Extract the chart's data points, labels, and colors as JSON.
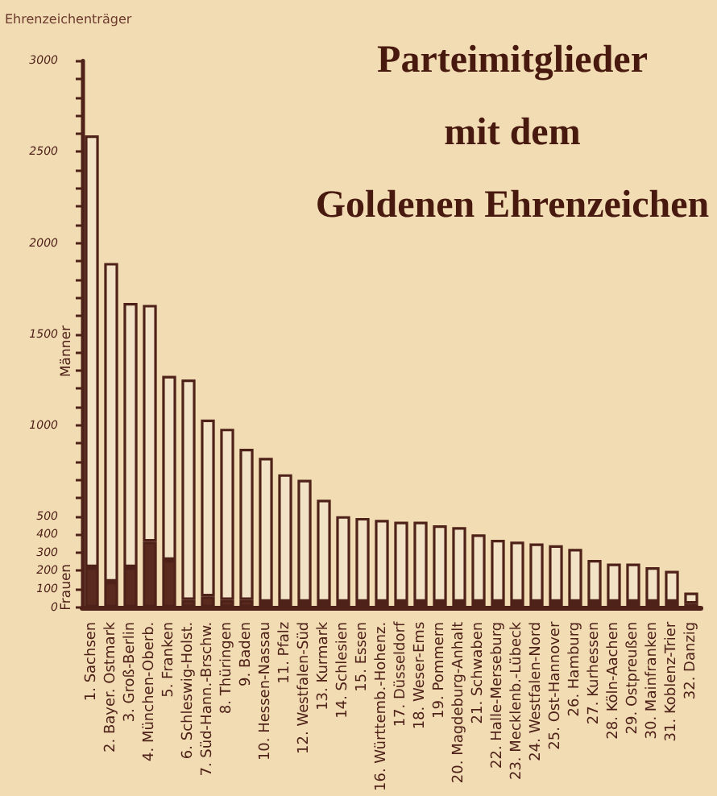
{
  "chart_data": {
    "type": "bar",
    "title": "Parteimitglieder\nmit dem\nGoldenen Ehrenzeichen",
    "ylabel": "Ehrenzeichenträger",
    "categories": [
      "1. Sachsen",
      "2. Bayer. Ostmark",
      "3. Groß-Berlin",
      "4. München-Oberb.",
      "5. Franken",
      "6. Schleswig-Holst.",
      "7. Süd-Hann.-Brschw.",
      "8. Thüringen",
      "9. Baden",
      "10. Hessen-Nassau",
      "11. Pfalz",
      "12. Westfalen-Süd",
      "13. Kurmark",
      "14. Schlesien",
      "15. Essen",
      "16. Württemb.-Hohenz.",
      "17. Düsseldorf",
      "18. Weser-Ems",
      "19. Pommern",
      "20. Magdeburg-Anhalt",
      "21. Schwaben",
      "22. Halle-Merseburg",
      "23. Mecklenb.-Lübeck",
      "24. Westfalen-Nord",
      "25. Ost-Hannover",
      "26. Hamburg",
      "27. Kurhessen",
      "28. Köln-Aachen",
      "29. Ostpreußen",
      "30. Mainfranken",
      "31. Koblenz-Trier",
      "32. Danzig"
    ],
    "stacked": true,
    "series": [
      {
        "name": "Frauen",
        "color": "#5b2a1f",
        "values": [
          220,
          140,
          220,
          360,
          260,
          40,
          60,
          40,
          40,
          30,
          30,
          30,
          30,
          30,
          30,
          30,
          30,
          30,
          30,
          30,
          30,
          30,
          30,
          30,
          30,
          30,
          30,
          30,
          30,
          30,
          30,
          20
        ]
      },
      {
        "name": "Männer",
        "color": "#f3e3c6",
        "values": [
          2370,
          1750,
          1450,
          1300,
          1010,
          1210,
          970,
          940,
          830,
          790,
          700,
          670,
          560,
          470,
          460,
          450,
          440,
          440,
          420,
          410,
          370,
          340,
          330,
          320,
          310,
          290,
          230,
          210,
          210,
          190,
          170,
          60
        ]
      }
    ],
    "ylim": [
      0,
      3000
    ],
    "yticks": [
      0,
      100,
      200,
      300,
      400,
      500,
      {
        "value": 600,
        "label": null
      },
      {
        "value": 700,
        "label": null
      },
      {
        "value": 800,
        "label": null
      },
      {
        "value": 900,
        "label": null
      },
      1000,
      {
        "value": 1100,
        "label": null
      },
      {
        "value": 1200,
        "label": null
      },
      {
        "value": 1300,
        "label": null
      },
      {
        "value": 1400,
        "label": null
      },
      1500,
      {
        "value": 1600,
        "label": null
      },
      {
        "value": 1700,
        "label": null
      },
      {
        "value": 1800,
        "label": null
      },
      {
        "value": 1900,
        "label": null
      },
      2000,
      {
        "value": 2100,
        "label": null
      },
      {
        "value": 2200,
        "label": null
      },
      {
        "value": 2300,
        "label": null
      },
      {
        "value": 2400,
        "label": null
      },
      2500,
      {
        "value": 2600,
        "label": null
      },
      {
        "value": 2700,
        "label": null
      },
      {
        "value": 2800,
        "label": null
      },
      {
        "value": 2900,
        "label": null
      },
      3000
    ],
    "grid": false,
    "legend": false
  }
}
